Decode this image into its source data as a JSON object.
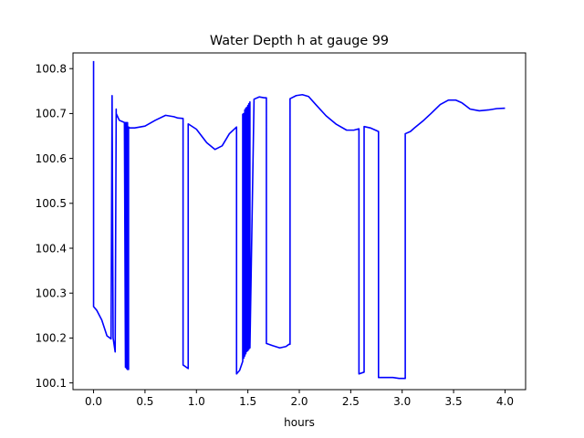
{
  "chart_data": {
    "type": "line",
    "title": "Water Depth h at gauge 99",
    "xlabel": "hours",
    "ylabel": "",
    "xlim": [
      -0.2,
      4.2
    ],
    "ylim": [
      100.085,
      100.835
    ],
    "xticks": [
      0.0,
      0.5,
      1.0,
      1.5,
      2.0,
      2.5,
      3.0,
      3.5,
      4.0
    ],
    "xtick_labels": [
      "0.0",
      "0.5",
      "1.0",
      "1.5",
      "2.0",
      "2.5",
      "3.0",
      "3.5",
      "4.0"
    ],
    "yticks": [
      100.1,
      100.2,
      100.3,
      100.4,
      100.5,
      100.6,
      100.7,
      100.8
    ],
    "ytick_labels": [
      "100.1",
      "100.2",
      "100.3",
      "100.4",
      "100.5",
      "100.6",
      "100.7",
      "100.8"
    ],
    "grid": false,
    "series": [
      {
        "color": "#0000ff",
        "x": [
          0.0,
          0.0,
          0.03,
          0.08,
          0.13,
          0.17,
          0.18,
          0.19,
          0.19,
          0.21,
          0.22,
          0.22,
          0.25,
          0.3,
          0.31,
          0.31,
          0.32,
          0.32,
          0.33,
          0.33,
          0.34,
          0.34,
          0.35,
          0.4,
          0.5,
          0.6,
          0.7,
          0.78,
          0.82,
          0.87,
          0.87,
          0.92,
          0.92,
          1.0,
          1.1,
          1.18,
          1.25,
          1.32,
          1.39,
          1.39,
          1.42,
          1.45,
          1.45,
          1.46,
          1.46,
          1.47,
          1.47,
          1.48,
          1.48,
          1.49,
          1.49,
          1.5,
          1.5,
          1.51,
          1.51,
          1.52,
          1.52,
          1.56,
          1.61,
          1.66,
          1.68,
          1.68,
          1.74,
          1.81,
          1.87,
          1.9,
          1.91,
          1.91,
          1.97,
          2.03,
          2.09,
          2.16,
          2.26,
          2.36,
          2.46,
          2.53,
          2.58,
          2.58,
          2.63,
          2.63,
          2.69,
          2.73,
          2.77,
          2.77,
          2.83,
          2.91,
          2.97,
          3.03,
          3.03,
          3.08,
          3.12,
          3.2,
          3.28,
          3.37,
          3.45,
          3.52,
          3.58,
          3.66,
          3.75,
          3.84,
          3.92,
          4.0
        ],
        "y": [
          100.817,
          100.27,
          100.262,
          100.24,
          100.205,
          100.198,
          100.74,
          100.205,
          100.2,
          100.169,
          100.71,
          100.7,
          100.685,
          100.68,
          100.135,
          100.68,
          100.132,
          100.68,
          100.13,
          100.68,
          100.13,
          100.67,
          100.668,
          100.668,
          100.672,
          100.685,
          100.696,
          100.693,
          100.69,
          100.689,
          100.14,
          100.132,
          100.677,
          100.665,
          100.635,
          100.62,
          100.628,
          100.655,
          100.67,
          100.12,
          100.128,
          100.148,
          100.698,
          100.7,
          100.155,
          100.708,
          100.16,
          100.712,
          100.165,
          100.714,
          100.17,
          100.718,
          100.172,
          100.722,
          100.175,
          100.726,
          100.178,
          100.732,
          100.737,
          100.735,
          100.735,
          100.188,
          100.183,
          100.178,
          100.181,
          100.186,
          100.186,
          100.733,
          100.74,
          100.742,
          100.738,
          100.72,
          100.695,
          100.676,
          100.663,
          100.663,
          100.666,
          100.12,
          100.124,
          100.671,
          100.668,
          100.664,
          100.66,
          100.112,
          100.112,
          100.112,
          100.11,
          100.11,
          100.655,
          100.66,
          100.668,
          100.683,
          100.7,
          100.72,
          100.73,
          100.73,
          100.724,
          100.71,
          100.706,
          100.708,
          100.711,
          100.712
        ]
      }
    ]
  }
}
